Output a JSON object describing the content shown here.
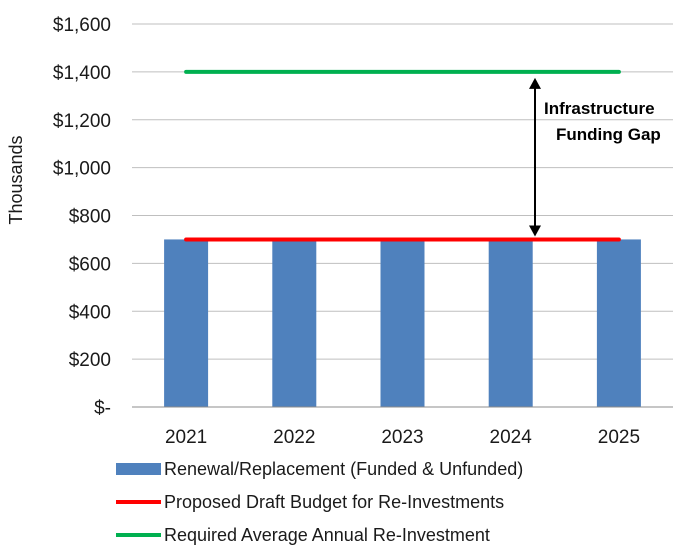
{
  "chart_data": {
    "type": "bar",
    "ylabel": "Thousands",
    "ylim": [
      0,
      1600
    ],
    "y_ticks": [
      {
        "value": 0,
        "label": "$-"
      },
      {
        "value": 200,
        "label": "$200"
      },
      {
        "value": 400,
        "label": "$400"
      },
      {
        "value": 600,
        "label": "$600"
      },
      {
        "value": 800,
        "label": "$800"
      },
      {
        "value": 1000,
        "label": "$1,000"
      },
      {
        "value": 1200,
        "label": "$1,200"
      },
      {
        "value": 1400,
        "label": "$1,400"
      },
      {
        "value": 1600,
        "label": "$1,600"
      }
    ],
    "categories": [
      "2021",
      "2022",
      "2023",
      "2024",
      "2025"
    ],
    "grid": true,
    "legend_position": "bottom",
    "series": [
      {
        "name": "Renewal/Replacement (Funded & Unfunded)",
        "type": "bar",
        "color": "#4f81bd",
        "values": [
          700,
          700,
          700,
          700,
          700
        ]
      },
      {
        "name": "Proposed Draft Budget for Re-Investments",
        "type": "line",
        "color": "#ff0000",
        "values": [
          700,
          700,
          700,
          700,
          700
        ]
      },
      {
        "name": "Required Average Annual Re-Investment",
        "type": "line",
        "color": "#00b050",
        "values": [
          1400,
          1400,
          1400,
          1400,
          1400
        ]
      }
    ],
    "annotation": {
      "lines": [
        "Infrastructure",
        "Funding Gap"
      ],
      "from_value": 1400,
      "to_value": 700
    }
  }
}
